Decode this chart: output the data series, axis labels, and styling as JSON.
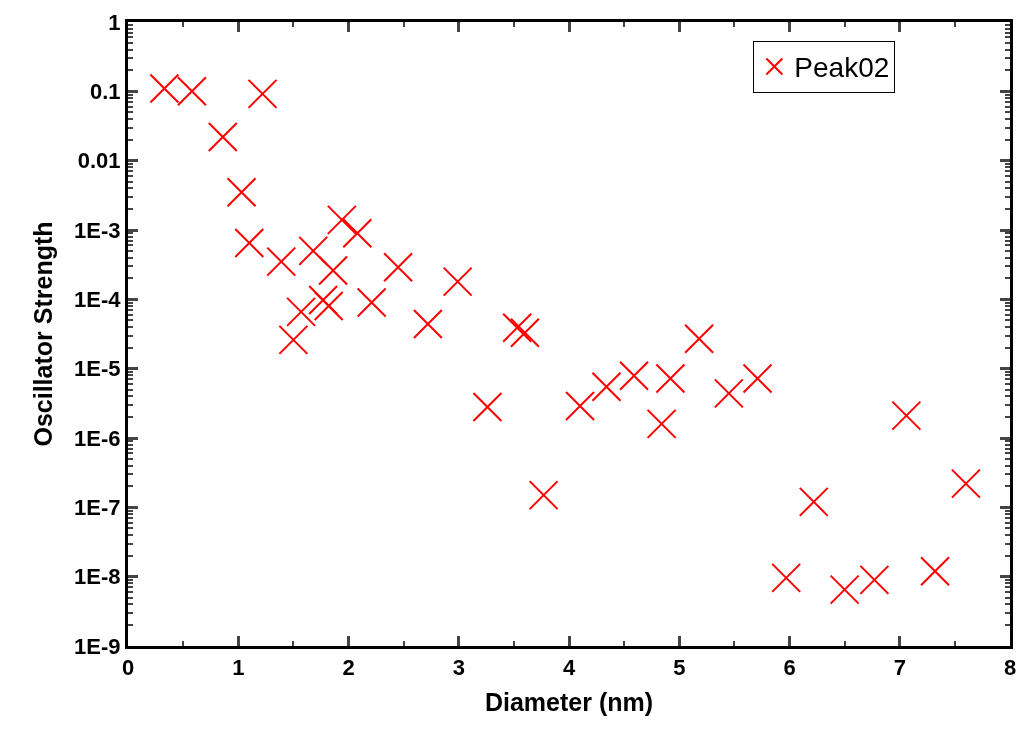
{
  "chart_data": {
    "type": "scatter",
    "xlabel": "Diameter (nm)",
    "ylabel": "Oscillator Strength",
    "log": "y",
    "marker": "cross",
    "legend": "top right",
    "xlim": [
      0,
      8
    ],
    "xticks": [
      0,
      1,
      2,
      3,
      4,
      5,
      6,
      7,
      8
    ],
    "ylim": [
      1e-09,
      1
    ],
    "yticks": [
      1,
      0.1,
      0.01,
      {
        "value": 0.001,
        "label": "1E-3"
      },
      {
        "value": 0.0001,
        "label": "1E-4"
      },
      {
        "value": 1e-05,
        "label": "1E-5"
      },
      {
        "value": 1e-06,
        "label": "1E-6"
      },
      {
        "value": 1e-07,
        "label": "1E-7"
      },
      {
        "value": 1e-08,
        "label": "1E-8"
      },
      {
        "value": 1e-09,
        "label": "1E-9"
      }
    ],
    "series": [
      {
        "name": "Peak02",
        "color": "#ff0000",
        "x": [
          0.33,
          0.58,
          1.22,
          0.86,
          1.03,
          1.1,
          1.39,
          1.68,
          1.94,
          2.08,
          1.86,
          1.57,
          1.5,
          1.77,
          1.82,
          2.21,
          2.45,
          2.72,
          2.99,
          3.53,
          3.6,
          3.26,
          3.77,
          4.1,
          4.34,
          4.59,
          4.92,
          4.84,
          5.18,
          5.45,
          5.71,
          6.22,
          5.97,
          6.5,
          6.77,
          7.32,
          7.06,
          7.6
        ],
        "values": [
          0.11,
          0.1,
          0.092,
          0.022,
          0.0035,
          0.00065,
          0.00035,
          0.0005,
          0.0014,
          0.0009,
          0.00026,
          6.6e-05,
          2.6e-05,
          9.8e-05,
          8e-05,
          9e-05,
          0.00029,
          4.4e-05,
          0.00018,
          3.9e-05,
          3.3e-05,
          2.8e-06,
          1.5e-07,
          2.9e-06,
          5.5e-06,
          7.9e-06,
          7.2e-06,
          1.6e-06,
          2.7e-05,
          4.4e-06,
          7.2e-06,
          1.2e-07,
          9.6e-09,
          6.5e-09,
          9e-09,
          1.2e-08,
          2.1e-06,
          2.2e-07
        ]
      }
    ]
  }
}
